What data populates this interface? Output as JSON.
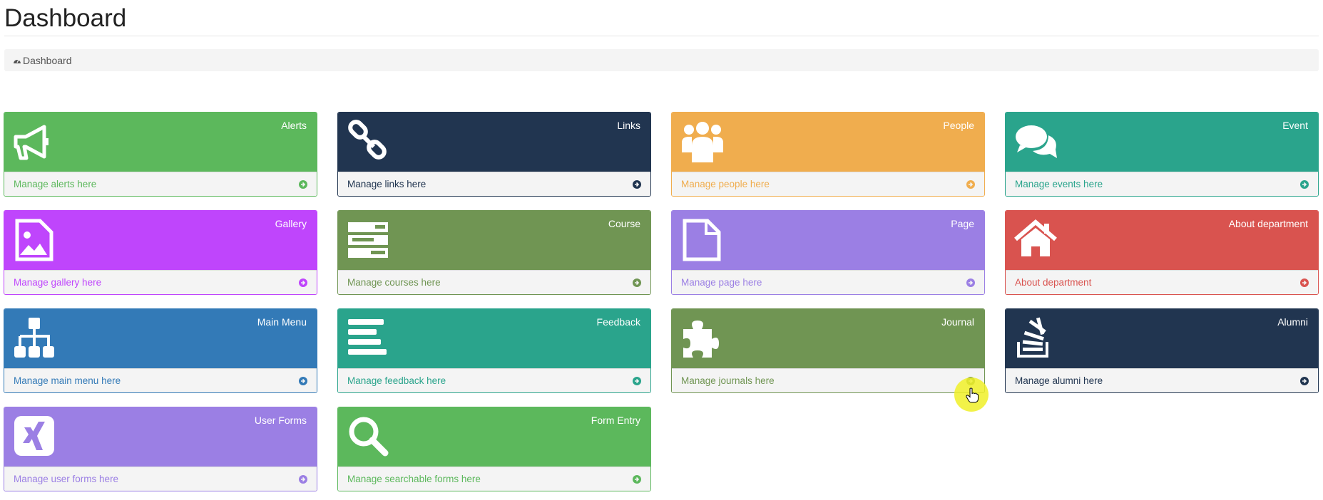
{
  "page": {
    "title": "Dashboard"
  },
  "breadcrumb": {
    "icon": "dashboard-icon",
    "label": "Dashboard"
  },
  "cards": [
    {
      "title": "Alerts",
      "footer": "Manage alerts here",
      "icon": "bullhorn",
      "color": "#5cb85c",
      "text": "#5cb85c"
    },
    {
      "title": "Links",
      "footer": "Manage links here",
      "icon": "link",
      "color": "#213550",
      "text": "#213550"
    },
    {
      "title": "People",
      "footer": "Manage people here",
      "icon": "users",
      "color": "#f0ad4e",
      "text": "#f0ad4e"
    },
    {
      "title": "Event",
      "footer": "Manage events here",
      "icon": "comments",
      "color": "#2aa48c",
      "text": "#2aa48c"
    },
    {
      "title": "Gallery",
      "footer": "Manage gallery here",
      "icon": "file-image",
      "color": "#bf45fc",
      "text": "#bf45fc"
    },
    {
      "title": "Course",
      "footer": "Manage courses here",
      "icon": "list-alt",
      "color": "#709553",
      "text": "#709553"
    },
    {
      "title": "Page",
      "footer": "Manage page here",
      "icon": "file",
      "color": "#9b7fe4",
      "text": "#9b7fe4"
    },
    {
      "title": "About department",
      "footer": "About department",
      "icon": "home",
      "color": "#d9534f",
      "text": "#d9534f"
    },
    {
      "title": "Main Menu",
      "footer": "Manage main menu here",
      "icon": "sitemap",
      "color": "#337ab7",
      "text": "#337ab7"
    },
    {
      "title": "Feedback",
      "footer": "Manage feedback here",
      "icon": "align-left",
      "color": "#2aa48c",
      "text": "#2aa48c"
    },
    {
      "title": "Journal",
      "footer": "Manage journals here",
      "icon": "puzzle-piece",
      "color": "#709553",
      "text": "#709553"
    },
    {
      "title": "Alumni",
      "footer": "Manage alumni here",
      "icon": "stack-overflow",
      "color": "#213550",
      "text": "#213550"
    },
    {
      "title": "User Forms",
      "footer": "Manage user forms here",
      "icon": "xing",
      "color": "#9b7fe4",
      "text": "#9b7fe4"
    },
    {
      "title": "Form Entry",
      "footer": "Manage searchable forms here",
      "icon": "search",
      "color": "#5cb85c",
      "text": "#5cb85c"
    }
  ]
}
